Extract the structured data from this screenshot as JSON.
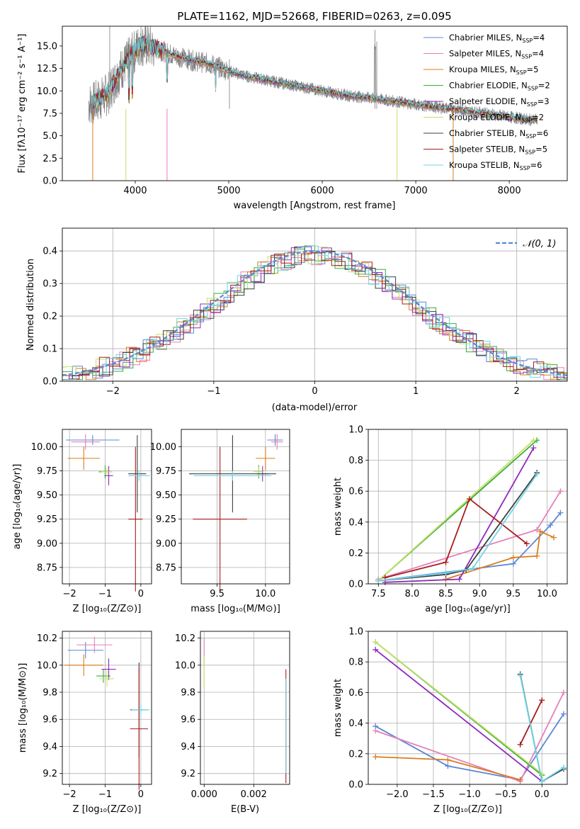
{
  "spectrum": {
    "title": "PLATE=1162, MJD=52668, FIBERID=0263, z=0.095",
    "xlabel": "wavelength [Angstrom, rest frame]",
    "ylabel": "Flux [fλ10⁻¹⁷ erg cm⁻² s⁻¹ A⁻¹]",
    "xlim": [
      3220,
      8620
    ],
    "ylim": [
      0,
      17.2
    ],
    "xticks": [
      "4000",
      "5000",
      "6000",
      "7000",
      "8000"
    ],
    "yticks": [
      "0.0",
      "2.5",
      "5.0",
      "7.5",
      "10.0",
      "12.5",
      "15.0"
    ],
    "legend": [
      {
        "label": "Chabrier MILES, N",
        "sub": "SSP",
        "tail": "=4",
        "color": "#5b87d6"
      },
      {
        "label": "Salpeter MILES, N",
        "sub": "SSP",
        "tail": "=4",
        "color": "#e57fbb"
      },
      {
        "label": "Kroupa MILES, N",
        "sub": "SSP",
        "tail": "=5",
        "color": "#d97d1e"
      },
      {
        "label": "Chabrier ELODIE, N",
        "sub": "SSP",
        "tail": "=2",
        "color": "#39ad3b"
      },
      {
        "label": "Salpeter ELODIE, N",
        "sub": "SSP",
        "tail": "=3",
        "color": "#8f2bba"
      },
      {
        "label": "Kroupa ELODIE, N",
        "sub": "SSP",
        "tail": "=2",
        "color": "#c6e06a"
      },
      {
        "label": "Chabrier STELIB, N",
        "sub": "SSP",
        "tail": "=6",
        "color": "#3d3d3d"
      },
      {
        "label": "Salpeter STELIB, N",
        "sub": "SSP",
        "tail": "=5",
        "color": "#a81c1c"
      },
      {
        "label": "Kroupa STELIB, N",
        "sub": "SSP",
        "tail": "=6",
        "color": "#6fd6e6"
      }
    ]
  },
  "residuals": {
    "xlabel": "(data-model)/error",
    "ylabel": "Normed distribution",
    "xticks": [
      "−2",
      "−1",
      "0",
      "1",
      "2"
    ],
    "yticks": [
      "0.0",
      "0.1",
      "0.2",
      "0.3",
      "0.4"
    ],
    "legend_label": "𝒩(0, 1)"
  },
  "panels": {
    "age_vs_Z": {
      "ylabel": "age  [log₁₀(age/yr)]",
      "xlabel": "Z [log₁₀(Z/Z⊙)]",
      "xticks": [
        "−2",
        "−1",
        "0"
      ],
      "yticks": [
        "8.75",
        "9.00",
        "9.25",
        "9.50",
        "9.75",
        "10.00"
      ]
    },
    "age_vs_mass": {
      "xlabel": "mass [log₁₀(M/M⊙)]",
      "xticks": [
        "9.5",
        "10.0"
      ],
      "yticks": [
        "8.75",
        "9.00",
        "9.25",
        "9.50",
        "9.75",
        "10.00"
      ]
    },
    "weight_vs_age": {
      "ylabel": "mass weight",
      "xlabel": "age  [log₁₀(age/yr)]",
      "xticks": [
        "7.5",
        "8.0",
        "8.5",
        "9.0",
        "9.5",
        "10.0"
      ],
      "yticks": [
        "0.0",
        "0.2",
        "0.4",
        "0.6",
        "0.8",
        "1.0"
      ]
    },
    "mass_vs_Z": {
      "ylabel": "mass [log₁₀(M/M⊙)]",
      "xlabel": "Z [log₁₀(Z/Z⊙)]",
      "xticks": [
        "−2",
        "−1",
        "0"
      ],
      "yticks": [
        "9.2",
        "9.4",
        "9.6",
        "9.8",
        "10.0",
        "10.2"
      ]
    },
    "mass_vs_ebv": {
      "xlabel": "E(B-V)",
      "xticks": [
        "0.000",
        "0.002"
      ],
      "yticks": [
        "9.2",
        "9.4",
        "9.6",
        "9.8",
        "10.0",
        "10.2"
      ]
    },
    "weight_vs_Z": {
      "ylabel": "mass weight",
      "xlabel": "Z [log₁₀(Z/Z⊙)]",
      "xticks": [
        "−2.0",
        "−1.5",
        "−1.0",
        "−0.5",
        "0.0"
      ],
      "yticks": [
        "0.0",
        "0.2",
        "0.4",
        "0.6",
        "0.8",
        "1.0"
      ]
    }
  },
  "chart_data": [
    {
      "type": "line",
      "title": "PLATE=1162, MJD=52668, FIBERID=0263, z=0.095",
      "xlabel": "wavelength [Angstrom, rest frame]",
      "xlim": [
        3220,
        8620
      ],
      "ylim": [
        0,
        17.2
      ],
      "x": [
        3550,
        3700,
        3850,
        3950,
        4050,
        4200,
        4400,
        4600,
        4800,
        5000,
        5200,
        5500,
        5800,
        6000,
        6200,
        6500,
        6800,
        7000,
        7200,
        7400,
        7600,
        7800,
        8000,
        8200
      ],
      "series": [
        {
          "name": "Chabrier MILES, N_SSP=4",
          "values": [
            8.6,
            9.6,
            12.4,
            13.8,
            15.2,
            14.8,
            14.0,
            13.4,
            13.0,
            12.2,
            11.6,
            11.0,
            10.4,
            10.0,
            9.6,
            9.2,
            8.8,
            8.5,
            8.2,
            8.0,
            7.7,
            7.4,
            7.1,
            6.8
          ]
        },
        {
          "name": "Kroupa STELIB, N_SSP=6",
          "values": [
            8.6,
            9.7,
            12.5,
            14.0,
            15.4,
            14.9,
            14.1,
            13.5,
            13.0,
            12.2,
            11.6,
            11.0,
            10.4,
            10.0,
            9.6,
            9.2,
            8.8,
            8.5,
            8.2,
            8.0,
            7.7,
            7.4,
            7.1,
            6.8
          ]
        }
      ],
      "grid": false,
      "legend_position": "top-right"
    },
    {
      "type": "line",
      "xlabel": "(data-model)/error",
      "ylabel": "Normed distribution",
      "xlim": [
        -2.5,
        2.5
      ],
      "ylim": [
        0,
        0.47
      ],
      "series": [
        {
          "name": "𝒩(0, 1)",
          "x": [
            -2.5,
            -2,
            -1.5,
            -1,
            -0.5,
            0,
            0.5,
            1,
            1.5,
            2,
            2.5
          ],
          "values": [
            0.018,
            0.054,
            0.13,
            0.242,
            0.352,
            0.399,
            0.352,
            0.242,
            0.13,
            0.054,
            0.018
          ]
        }
      ],
      "grid": true,
      "legend_position": "top-right"
    },
    {
      "type": "scatter",
      "xlabel": "age  [log₁₀(age/yr)]",
      "ylabel": "mass weight",
      "xlim": [
        7.35,
        10.3
      ],
      "ylim": [
        0,
        1
      ],
      "series": [
        {
          "name": "Chabrier MILES",
          "x": [
            7.5,
            9.5,
            10.05,
            10.2
          ],
          "values": [
            0.02,
            0.13,
            0.38,
            0.46
          ]
        },
        {
          "name": "Salpeter MILES",
          "x": [
            7.5,
            9.85,
            10.2
          ],
          "values": [
            0.03,
            0.35,
            0.6
          ]
        },
        {
          "name": "Kroupa MILES",
          "x": [
            8.5,
            9.5,
            9.85,
            9.9,
            10.1
          ],
          "values": [
            0.03,
            0.17,
            0.18,
            0.34,
            0.3
          ]
        },
        {
          "name": "Chabrier ELODIE",
          "x": [
            7.5,
            9.85
          ],
          "values": [
            0.02,
            0.93
          ]
        },
        {
          "name": "Salpeter ELODIE",
          "x": [
            7.6,
            8.7,
            9.8
          ],
          "values": [
            0.01,
            0.03,
            0.88
          ]
        },
        {
          "name": "Kroupa ELODIE",
          "x": [
            7.5,
            9.8
          ],
          "values": [
            0.02,
            0.93
          ]
        },
        {
          "name": "Chabrier STELIB",
          "x": [
            7.5,
            8.5,
            8.8,
            9.85
          ],
          "values": [
            0.02,
            0.06,
            0.09,
            0.72
          ]
        },
        {
          "name": "Salpeter STELIB",
          "x": [
            7.6,
            8.5,
            8.85,
            9.7
          ],
          "values": [
            0.04,
            0.14,
            0.55,
            0.26
          ]
        },
        {
          "name": "Kroupa STELIB",
          "x": [
            7.5,
            8.5,
            8.9,
            9.85
          ],
          "values": [
            0.02,
            0.07,
            0.1,
            0.71
          ]
        }
      ],
      "grid": true
    },
    {
      "type": "scatter",
      "xlabel": "Z [log₁₀(Z/Z⊙)]",
      "ylabel": "mass weight",
      "xlim": [
        -2.4,
        0.35
      ],
      "ylim": [
        0,
        1
      ],
      "series": [
        {
          "name": "Chabrier MILES",
          "x": [
            -2.3,
            -1.3,
            -0.3,
            0.3
          ],
          "values": [
            0.38,
            0.12,
            0.03,
            0.46
          ]
        },
        {
          "name": "Salpeter MILES",
          "x": [
            -2.3,
            -0.3,
            0.3
          ],
          "values": [
            0.35,
            0.02,
            0.6
          ]
        },
        {
          "name": "Kroupa MILES",
          "x": [
            -2.3,
            -1.3,
            -0.3
          ],
          "values": [
            0.18,
            0.16,
            0.03
          ]
        },
        {
          "name": "Chabrier ELODIE",
          "x": [
            -2.3,
            0.0
          ],
          "values": [
            0.93,
            0.06
          ]
        },
        {
          "name": "Salpeter ELODIE",
          "x": [
            -2.3,
            0.0
          ],
          "values": [
            0.88,
            0.02
          ]
        },
        {
          "name": "Kroupa ELODIE",
          "x": [
            -2.3,
            0.0
          ],
          "values": [
            0.93,
            0.07
          ]
        },
        {
          "name": "Chabrier STELIB",
          "x": [
            -0.3,
            0.0,
            0.3
          ],
          "values": [
            0.72,
            0.02,
            0.1
          ]
        },
        {
          "name": "Salpeter STELIB",
          "x": [
            -0.3,
            0.0
          ],
          "values": [
            0.26,
            0.55
          ]
        },
        {
          "name": "Kroupa STELIB",
          "x": [
            -0.3,
            0.0,
            0.3
          ],
          "values": [
            0.71,
            0.02,
            0.11
          ]
        }
      ],
      "grid": true
    }
  ]
}
